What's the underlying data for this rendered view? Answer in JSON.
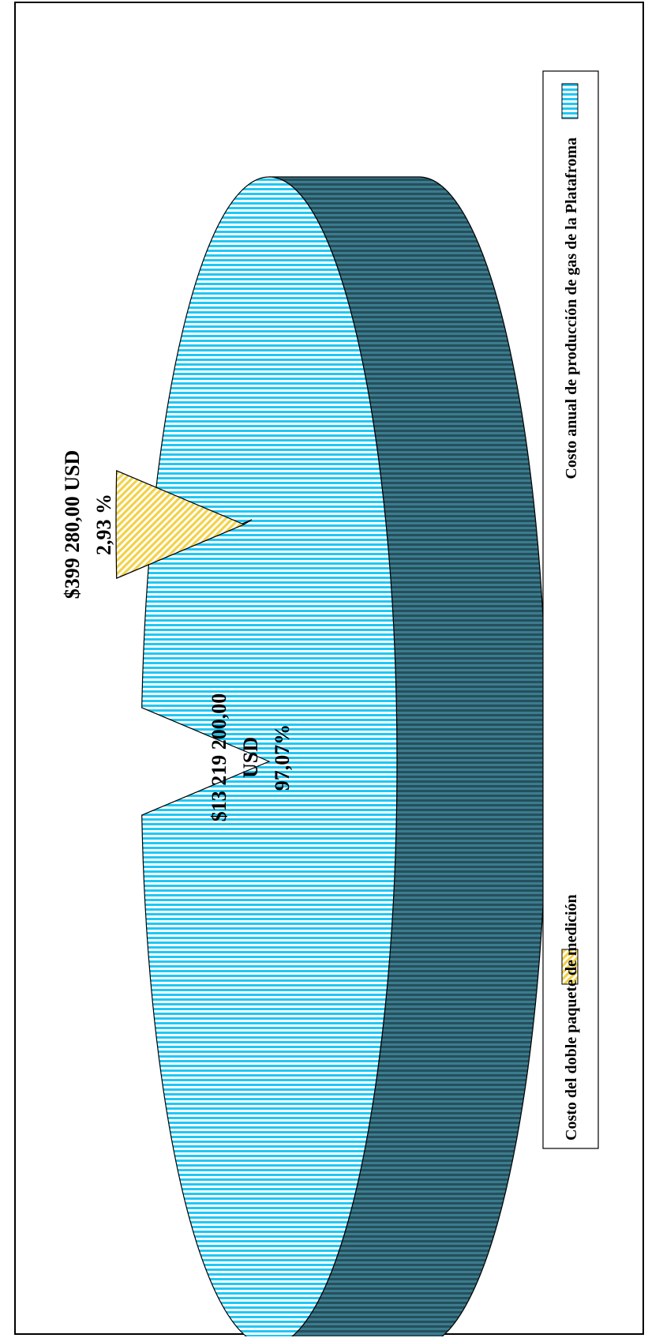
{
  "chart_data": {
    "type": "pie",
    "title": "",
    "orientation": "rotated-90-ccw",
    "style": "3d-exploded",
    "slices": [
      {
        "label": "Costo anual de producción de gas de la Platafroma",
        "value": 13219200.0,
        "percent": 97.07,
        "value_label": "$13 219 200,00 USD",
        "percent_label": "97,07%",
        "color": "#1EC8F5",
        "side_color": "#2F6678",
        "pattern": "vertical-lines"
      },
      {
        "label": "Costo del doble paquete de medición",
        "value": 399280.0,
        "percent": 2.93,
        "value_label": "$399 280,00 USD",
        "percent_label": "2,93 %",
        "color": "#F2D24A",
        "side_color": "#6E5D30",
        "pattern": "diagonal-lines"
      }
    ],
    "legend": {
      "placement": "right",
      "entries": [
        "Costo del doble paquete de medición",
        "Costo anual de producción de gas de la Platafroma"
      ]
    }
  }
}
